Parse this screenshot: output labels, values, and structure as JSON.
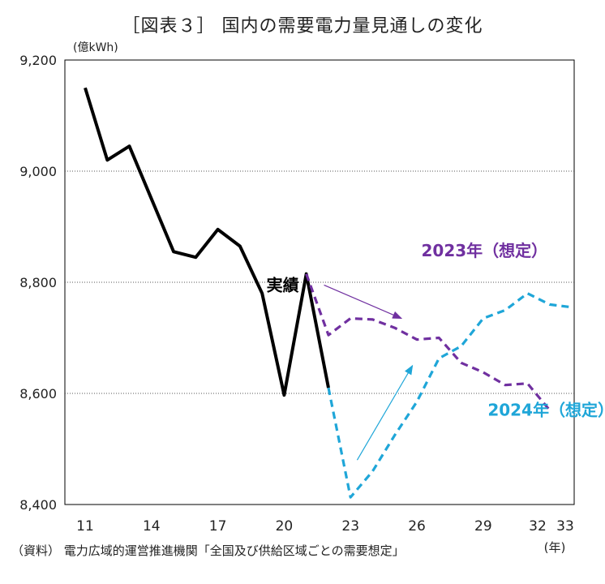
{
  "title": "［図表３］ 国内の需要電力量見通しの変化",
  "source": "（資料） 電力広域的運営推進機関「全国及び供給区域ごとの需要想定」",
  "chart_data": {
    "type": "line",
    "y_unit_label": "(億kWh)",
    "x_unit_label": "(年)",
    "ylim": [
      8400,
      9200
    ],
    "xlim": [
      11,
      33
    ],
    "y_ticks": [
      8400,
      8600,
      8800,
      9000,
      9200
    ],
    "y_tick_labels": [
      "8,400",
      "8,600",
      "8,800",
      "9,000",
      "9,200"
    ],
    "x_ticks": [
      11,
      14,
      17,
      20,
      23,
      26,
      29,
      32,
      33
    ],
    "x_tick_labels": [
      "11",
      "14",
      "17",
      "20",
      "23",
      "26",
      "29",
      "32",
      "33"
    ],
    "grid": "horizontal dotted",
    "series": [
      {
        "name": "実績",
        "color": "#000000",
        "style": "solid",
        "x": [
          11,
          12,
          13,
          14,
          15,
          16,
          17,
          18,
          19,
          20,
          21,
          22
        ],
        "values": [
          9150,
          9020,
          9045,
          8950,
          8855,
          8845,
          8895,
          8865,
          8780,
          8597,
          8815,
          8610
        ]
      },
      {
        "name": "2023年（想定）",
        "color": "#7030a0",
        "style": "dashed",
        "x": [
          21,
          22,
          23,
          24,
          25,
          26,
          27,
          28,
          29,
          30,
          31,
          32
        ],
        "values": [
          8815,
          8705,
          8735,
          8733,
          8718,
          8697,
          8700,
          8655,
          8638,
          8615,
          8618,
          8570
        ]
      },
      {
        "name": "2024年（想定）",
        "color": "#1fa6d8",
        "style": "dashed",
        "x": [
          22,
          23,
          24,
          25,
          26,
          27,
          28,
          29,
          30,
          31,
          32,
          33
        ],
        "values": [
          8610,
          8413,
          8460,
          8525,
          8585,
          8663,
          8685,
          8735,
          8750,
          8780,
          8760,
          8755
        ]
      }
    ],
    "annotations": [
      {
        "text": "実績",
        "color": "#000000",
        "x": 19.2,
        "y": 8785
      },
      {
        "text": "2023年（想定）",
        "color": "#7030a0",
        "x": 26.2,
        "y": 8847
      },
      {
        "text": "2024年（想定）",
        "color": "#1fa6d8",
        "x": 29.2,
        "y": 8560
      }
    ],
    "arrows": [
      {
        "color": "#7030a0",
        "from": [
          21.8,
          8795
        ],
        "to": [
          25.3,
          8735
        ]
      },
      {
        "color": "#1fa6d8",
        "from": [
          23.3,
          8480
        ],
        "to": [
          25.8,
          8650
        ]
      }
    ]
  }
}
